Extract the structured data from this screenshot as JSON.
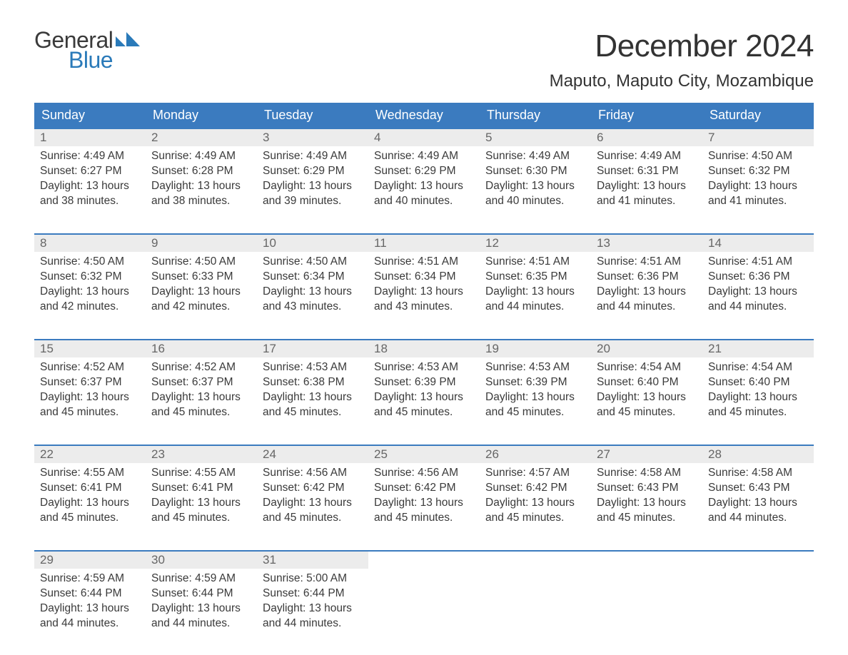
{
  "logo": {
    "text1": "General",
    "text2": "Blue",
    "flag_color": "#2a7ab9"
  },
  "title": "December 2024",
  "location": "Maputo, Maputo City, Mozambique",
  "header_bg": "#3b7bbf",
  "header_fg": "#ffffff",
  "daynum_bg": "#ececec",
  "week_border": "#3b7bbf",
  "text_color": "#3a3a3a",
  "font_family": "Arial, Helvetica, sans-serif",
  "title_fontsize": 44,
  "location_fontsize": 24,
  "header_fontsize": 18,
  "body_fontsize": 15.5,
  "day_names": [
    "Sunday",
    "Monday",
    "Tuesday",
    "Wednesday",
    "Thursday",
    "Friday",
    "Saturday"
  ],
  "labels": {
    "sunrise": "Sunrise:",
    "sunset": "Sunset:",
    "daylight": "Daylight:"
  },
  "weeks": [
    [
      {
        "n": "1",
        "sr": "4:49 AM",
        "ss": "6:27 PM",
        "dl": "13 hours and 38 minutes."
      },
      {
        "n": "2",
        "sr": "4:49 AM",
        "ss": "6:28 PM",
        "dl": "13 hours and 38 minutes."
      },
      {
        "n": "3",
        "sr": "4:49 AM",
        "ss": "6:29 PM",
        "dl": "13 hours and 39 minutes."
      },
      {
        "n": "4",
        "sr": "4:49 AM",
        "ss": "6:29 PM",
        "dl": "13 hours and 40 minutes."
      },
      {
        "n": "5",
        "sr": "4:49 AM",
        "ss": "6:30 PM",
        "dl": "13 hours and 40 minutes."
      },
      {
        "n": "6",
        "sr": "4:49 AM",
        "ss": "6:31 PM",
        "dl": "13 hours and 41 minutes."
      },
      {
        "n": "7",
        "sr": "4:50 AM",
        "ss": "6:32 PM",
        "dl": "13 hours and 41 minutes."
      }
    ],
    [
      {
        "n": "8",
        "sr": "4:50 AM",
        "ss": "6:32 PM",
        "dl": "13 hours and 42 minutes."
      },
      {
        "n": "9",
        "sr": "4:50 AM",
        "ss": "6:33 PM",
        "dl": "13 hours and 42 minutes."
      },
      {
        "n": "10",
        "sr": "4:50 AM",
        "ss": "6:34 PM",
        "dl": "13 hours and 43 minutes."
      },
      {
        "n": "11",
        "sr": "4:51 AM",
        "ss": "6:34 PM",
        "dl": "13 hours and 43 minutes."
      },
      {
        "n": "12",
        "sr": "4:51 AM",
        "ss": "6:35 PM",
        "dl": "13 hours and 44 minutes."
      },
      {
        "n": "13",
        "sr": "4:51 AM",
        "ss": "6:36 PM",
        "dl": "13 hours and 44 minutes."
      },
      {
        "n": "14",
        "sr": "4:51 AM",
        "ss": "6:36 PM",
        "dl": "13 hours and 44 minutes."
      }
    ],
    [
      {
        "n": "15",
        "sr": "4:52 AM",
        "ss": "6:37 PM",
        "dl": "13 hours and 45 minutes."
      },
      {
        "n": "16",
        "sr": "4:52 AM",
        "ss": "6:37 PM",
        "dl": "13 hours and 45 minutes."
      },
      {
        "n": "17",
        "sr": "4:53 AM",
        "ss": "6:38 PM",
        "dl": "13 hours and 45 minutes."
      },
      {
        "n": "18",
        "sr": "4:53 AM",
        "ss": "6:39 PM",
        "dl": "13 hours and 45 minutes."
      },
      {
        "n": "19",
        "sr": "4:53 AM",
        "ss": "6:39 PM",
        "dl": "13 hours and 45 minutes."
      },
      {
        "n": "20",
        "sr": "4:54 AM",
        "ss": "6:40 PM",
        "dl": "13 hours and 45 minutes."
      },
      {
        "n": "21",
        "sr": "4:54 AM",
        "ss": "6:40 PM",
        "dl": "13 hours and 45 minutes."
      }
    ],
    [
      {
        "n": "22",
        "sr": "4:55 AM",
        "ss": "6:41 PM",
        "dl": "13 hours and 45 minutes."
      },
      {
        "n": "23",
        "sr": "4:55 AM",
        "ss": "6:41 PM",
        "dl": "13 hours and 45 minutes."
      },
      {
        "n": "24",
        "sr": "4:56 AM",
        "ss": "6:42 PM",
        "dl": "13 hours and 45 minutes."
      },
      {
        "n": "25",
        "sr": "4:56 AM",
        "ss": "6:42 PM",
        "dl": "13 hours and 45 minutes."
      },
      {
        "n": "26",
        "sr": "4:57 AM",
        "ss": "6:42 PM",
        "dl": "13 hours and 45 minutes."
      },
      {
        "n": "27",
        "sr": "4:58 AM",
        "ss": "6:43 PM",
        "dl": "13 hours and 45 minutes."
      },
      {
        "n": "28",
        "sr": "4:58 AM",
        "ss": "6:43 PM",
        "dl": "13 hours and 44 minutes."
      }
    ],
    [
      {
        "n": "29",
        "sr": "4:59 AM",
        "ss": "6:44 PM",
        "dl": "13 hours and 44 minutes."
      },
      {
        "n": "30",
        "sr": "4:59 AM",
        "ss": "6:44 PM",
        "dl": "13 hours and 44 minutes."
      },
      {
        "n": "31",
        "sr": "5:00 AM",
        "ss": "6:44 PM",
        "dl": "13 hours and 44 minutes."
      },
      null,
      null,
      null,
      null
    ]
  ]
}
